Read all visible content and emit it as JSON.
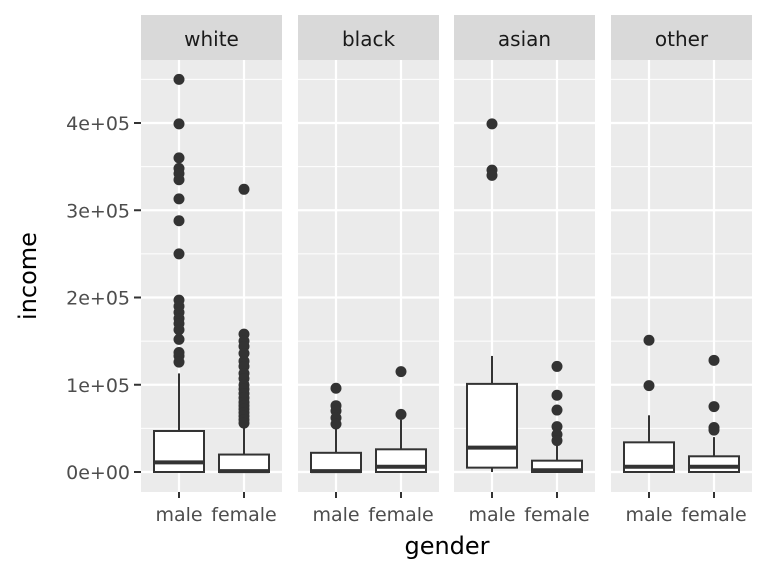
{
  "chart_data": {
    "type": "boxplot",
    "facet_variable": "race",
    "xlabel": "gender",
    "ylabel": "income",
    "ylim": [
      -20000,
      470000
    ],
    "y_ticks": [
      {
        "value": 0,
        "label": "0e+00"
      },
      {
        "value": 100000,
        "label": "1e+05"
      },
      {
        "value": 200000,
        "label": "2e+05"
      },
      {
        "value": 300000,
        "label": "3e+05"
      },
      {
        "value": 400000,
        "label": "4e+05"
      }
    ],
    "categories": [
      "male",
      "female"
    ],
    "grid": true,
    "colors": {
      "panel_bg": "#ebebeb",
      "strip_bg": "#d9d9d9",
      "grid": "#ffffff",
      "box_fill": "#ffffff",
      "box_line": "#333333",
      "text_dark": "#1a1a1a",
      "text_tick": "#4d4d4d"
    },
    "facets": [
      {
        "label": "white",
        "boxes": [
          {
            "category": "male",
            "min": 0,
            "q1": 0,
            "median": 11000,
            "q3": 47000,
            "max": 113000,
            "outliers": [
              450000,
              399000,
              360000,
              348000,
              342000,
              335000,
              313000,
              288000,
              250000,
              197000,
              190000,
              183000,
              176000,
              170000,
              163000,
              152000,
              137000,
              133000,
              126000
            ]
          },
          {
            "category": "female",
            "min": 0,
            "q1": 0,
            "median": 1000,
            "q3": 20000,
            "max": 50000,
            "outliers": [
              324000,
              158000,
              150000,
              144000,
              136000,
              127000,
              121000,
              113000,
              107000,
              100000,
              95000,
              90000,
              85000,
              80000,
              76000,
              72000,
              68000,
              64000,
              60000,
              56000
            ]
          }
        ]
      },
      {
        "label": "black",
        "boxes": [
          {
            "category": "male",
            "min": 0,
            "q1": 0,
            "median": 1000,
            "q3": 22000,
            "max": 50000,
            "outliers": [
              96000,
              76000,
              70000,
              62000,
              55000
            ]
          },
          {
            "category": "female",
            "min": 0,
            "q1": 0,
            "median": 6000,
            "q3": 26000,
            "max": 60000,
            "outliers": [
              115000,
              66000
            ]
          }
        ]
      },
      {
        "label": "asian",
        "boxes": [
          {
            "category": "male",
            "min": 0,
            "q1": 5000,
            "median": 28000,
            "q3": 101000,
            "max": 133000,
            "outliers": [
              399000,
              346000,
              340000
            ]
          },
          {
            "category": "female",
            "min": 0,
            "q1": 0,
            "median": 2000,
            "q3": 13000,
            "max": 30000,
            "outliers": [
              121000,
              88000,
              71000,
              52000,
              43000,
              36000
            ]
          }
        ]
      },
      {
        "label": "other",
        "boxes": [
          {
            "category": "male",
            "min": 0,
            "q1": 0,
            "median": 6000,
            "q3": 34000,
            "max": 65000,
            "outliers": [
              151000,
              99000
            ]
          },
          {
            "category": "female",
            "min": 0,
            "q1": 0,
            "median": 6000,
            "q3": 18000,
            "max": 40000,
            "outliers": [
              128000,
              75000,
              51000,
              48000
            ]
          }
        ]
      }
    ]
  }
}
